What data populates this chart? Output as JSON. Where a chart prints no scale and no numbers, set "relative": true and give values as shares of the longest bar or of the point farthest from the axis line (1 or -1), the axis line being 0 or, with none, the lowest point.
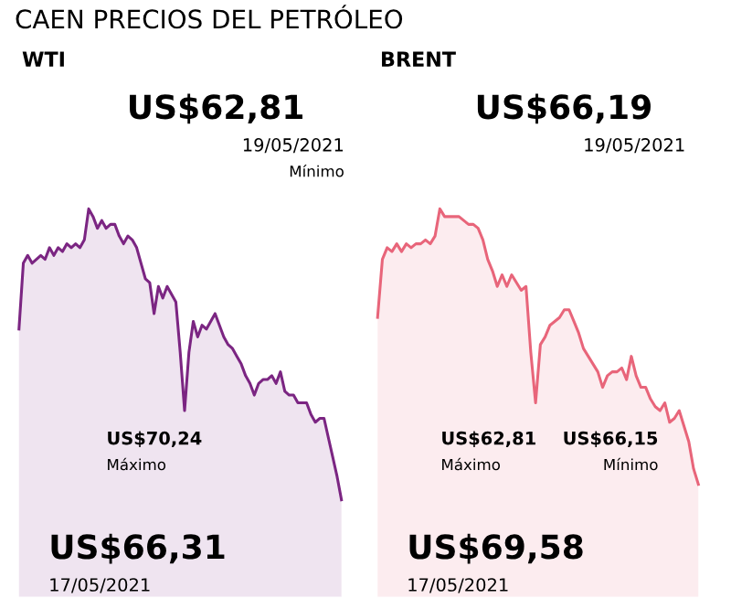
{
  "chart_data": [
    {
      "type": "area",
      "relative": true,
      "title": "CAEN PRECIOS DEL PETRÓLEO",
      "subtitle": "WTI",
      "categories": [
        null,
        null,
        null,
        null,
        null,
        null,
        null,
        null,
        null,
        null,
        null,
        null,
        null,
        null,
        null,
        null,
        null,
        null,
        null,
        null,
        null,
        null,
        null,
        null,
        null,
        null,
        null,
        null,
        null,
        null,
        null,
        null,
        null,
        null,
        null,
        null,
        null,
        null,
        null,
        null,
        null,
        null,
        null,
        null,
        null,
        null,
        null,
        null,
        null,
        null,
        null,
        null,
        null,
        null,
        null,
        null,
        null,
        null,
        null,
        null,
        null,
        null,
        null,
        null,
        null,
        null,
        null,
        null,
        null,
        null,
        null,
        null,
        null,
        null,
        null
      ],
      "series": [
        {
          "color": "#7b2582",
          "values": [
            0.69,
            0.86,
            0.88,
            0.86,
            0.87,
            0.88,
            0.87,
            0.9,
            0.88,
            0.9,
            0.89,
            0.91,
            0.9,
            0.91,
            0.9,
            0.92,
            1,
            0.98,
            0.95,
            0.97,
            0.95,
            0.96,
            0.96,
            0.93,
            0.91,
            0.93,
            0.92,
            0.9,
            0.86,
            0.82,
            0.81,
            0.73,
            0.8,
            0.77,
            0.8,
            0.78,
            0.76,
            0.63,
            0.48,
            0.63,
            0.71,
            0.67,
            0.7,
            0.69,
            0.71,
            0.73,
            0.7,
            0.67,
            0.65,
            0.64,
            0.62,
            0.6,
            0.57,
            0.55,
            0.52,
            0.55,
            0.56,
            0.56,
            0.57,
            0.55,
            0.58,
            0.53,
            0.52,
            0.52,
            0.5,
            0.5,
            0.5,
            0.47,
            0.45,
            0.46,
            0.46,
            0.41,
            0.36,
            0.31,
            0.25
          ]
        }
      ],
      "annotations": [
        "US$62,81",
        "19/05/2021",
        "Mínimo",
        "US$70,24",
        "Máximo",
        "US$66,31",
        "17/05/2021"
      ]
    },
    {
      "type": "area",
      "relative": true,
      "subtitle": "BRENT",
      "categories": [
        null,
        null,
        null,
        null,
        null,
        null,
        null,
        null,
        null,
        null,
        null,
        null,
        null,
        null,
        null,
        null,
        null,
        null,
        null,
        null,
        null,
        null,
        null,
        null,
        null,
        null,
        null,
        null,
        null,
        null,
        null,
        null,
        null,
        null,
        null,
        null,
        null,
        null,
        null,
        null,
        null,
        null,
        null,
        null,
        null,
        null,
        null,
        null,
        null,
        null,
        null,
        null,
        null,
        null,
        null,
        null,
        null,
        null,
        null,
        null,
        null,
        null,
        null,
        null,
        null,
        null,
        null,
        null
      ],
      "series": [
        {
          "color": "#e8657a",
          "values": [
            0.72,
            0.87,
            0.9,
            0.89,
            0.91,
            0.89,
            0.91,
            0.9,
            0.91,
            0.91,
            0.92,
            0.91,
            0.93,
            1,
            0.98,
            0.98,
            0.98,
            0.98,
            0.97,
            0.96,
            0.96,
            0.95,
            0.92,
            0.87,
            0.84,
            0.8,
            0.83,
            0.8,
            0.83,
            0.81,
            0.79,
            0.8,
            0.63,
            0.5,
            0.65,
            0.67,
            0.7,
            0.71,
            0.72,
            0.74,
            0.74,
            0.71,
            0.68,
            0.64,
            0.62,
            0.6,
            0.58,
            0.54,
            0.57,
            0.58,
            0.58,
            0.59,
            0.56,
            0.62,
            0.57,
            0.54,
            0.54,
            0.51,
            0.49,
            0.48,
            0.5,
            0.45,
            0.46,
            0.48,
            0.44,
            0.4,
            0.33,
            0.29
          ]
        }
      ],
      "annotations": [
        "US$66,19",
        "19/05/2021",
        "US$62,81",
        "Máximo",
        "US$66,15",
        "Mínimo",
        "US$69,58",
        "17/05/2021"
      ]
    }
  ]
}
